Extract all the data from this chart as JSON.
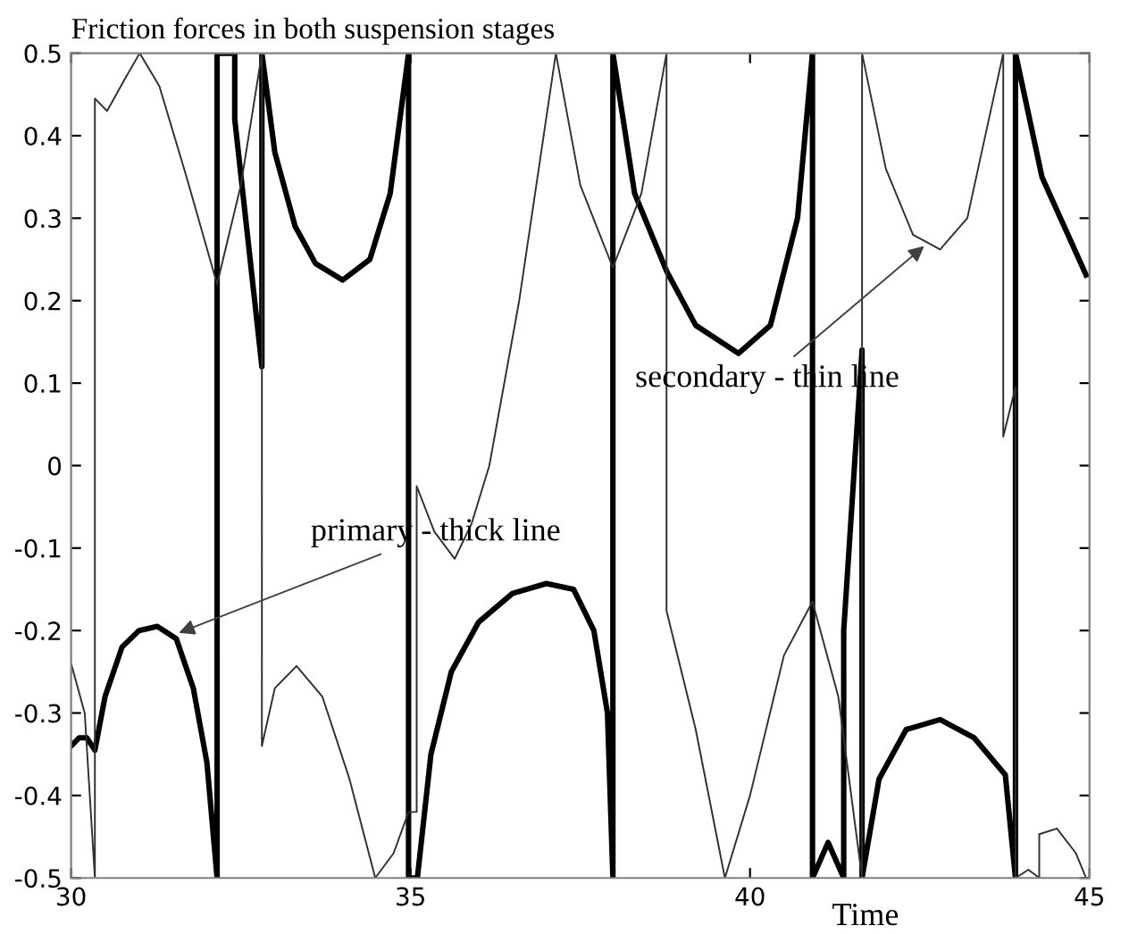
{
  "chart_data": {
    "type": "line",
    "title": "Friction forces in both suspension stages",
    "xlabel": "Time",
    "xlim": [
      30,
      45
    ],
    "xticks": [
      30,
      35,
      40,
      45
    ],
    "ylim": [
      -0.5,
      0.5
    ],
    "yticks": [
      -0.5,
      -0.4,
      -0.3,
      -0.2,
      -0.1,
      0,
      0.1,
      0.2,
      0.3,
      0.4,
      0.5
    ],
    "grid": false,
    "marker": "none",
    "line_style": "solid",
    "annotations": [
      {
        "text": "primary - thick line",
        "x": 31.52,
        "y": -0.205
      },
      {
        "text": "secondary - thin line",
        "x": 42.62,
        "y": 0.27
      }
    ],
    "series": [
      {
        "color": "#000000",
        "x": [
          30.0,
          30.12,
          30.23,
          30.35,
          30.5,
          30.75,
          31.0,
          31.27,
          31.55,
          31.8,
          32.0,
          32.15,
          32.15,
          32.41,
          32.41,
          32.81,
          32.81,
          33.0,
          33.3,
          33.6,
          34.0,
          34.4,
          34.7,
          34.97,
          34.97,
          35.1,
          35.3,
          35.6,
          36.0,
          36.5,
          37.0,
          37.4,
          37.7,
          37.9,
          37.98,
          37.98,
          38.3,
          38.77,
          39.2,
          39.83,
          40.3,
          40.7,
          40.92,
          40.92,
          41.15,
          41.38,
          41.38,
          41.65,
          41.65,
          41.9,
          42.3,
          42.8,
          43.3,
          43.76,
          43.91,
          43.91,
          44.3,
          44.95
        ],
        "values": [
          -0.34,
          -0.33,
          -0.33,
          -0.345,
          -0.28,
          -0.22,
          -0.2,
          -0.195,
          -0.21,
          -0.27,
          -0.36,
          -0.5,
          0.5,
          0.5,
          0.42,
          0.12,
          0.5,
          0.38,
          0.29,
          0.245,
          0.225,
          0.25,
          0.33,
          0.5,
          -0.5,
          -0.5,
          -0.35,
          -0.25,
          -0.19,
          -0.155,
          -0.143,
          -0.15,
          -0.2,
          -0.3,
          -0.5,
          0.5,
          0.33,
          0.236,
          0.17,
          0.136,
          0.17,
          0.3,
          0.5,
          -0.5,
          -0.457,
          -0.5,
          -0.2,
          0.14,
          -0.5,
          -0.38,
          -0.32,
          -0.308,
          -0.33,
          -0.375,
          -0.5,
          0.5,
          0.35,
          0.231
        ]
      },
      {
        "color": "#303030",
        "x": [
          30.0,
          30.2,
          30.35,
          30.35,
          30.53,
          30.8,
          31.01,
          31.3,
          31.7,
          32.15,
          32.5,
          32.81,
          32.81,
          33.0,
          33.32,
          33.7,
          34.1,
          34.48,
          34.75,
          34.97,
          35.09,
          35.09,
          35.35,
          35.65,
          35.9,
          36.16,
          36.6,
          37.14,
          37.5,
          37.98,
          38.4,
          38.77,
          38.77,
          39.2,
          39.63,
          40.0,
          40.5,
          40.92,
          41.3,
          41.65,
          41.65,
          42.0,
          42.4,
          42.8,
          43.2,
          43.73,
          43.73,
          43.91,
          43.91,
          44.1,
          44.26,
          44.26,
          44.52,
          44.8,
          44.95
        ],
        "values": [
          -0.24,
          -0.3,
          -0.5,
          0.445,
          0.43,
          0.47,
          0.5,
          0.46,
          0.35,
          0.22,
          0.34,
          0.5,
          -0.34,
          -0.27,
          -0.243,
          -0.28,
          -0.38,
          -0.5,
          -0.47,
          -0.42,
          -0.42,
          -0.025,
          -0.08,
          -0.113,
          -0.07,
          0.0,
          0.2,
          0.5,
          0.34,
          0.24,
          0.33,
          0.5,
          -0.176,
          -0.32,
          -0.5,
          -0.4,
          -0.23,
          -0.165,
          -0.28,
          -0.5,
          0.5,
          0.36,
          0.28,
          0.262,
          0.3,
          0.5,
          0.035,
          0.095,
          -0.5,
          -0.49,
          -0.5,
          -0.447,
          -0.44,
          -0.47,
          -0.5
        ]
      }
    ]
  }
}
